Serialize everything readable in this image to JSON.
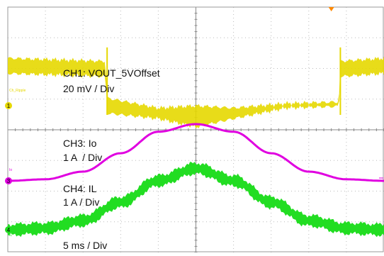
{
  "chart_data": {
    "type": "line",
    "title": "",
    "xlabel": "",
    "ylabel": "",
    "grid": true,
    "timebase": "5 ms / Div",
    "x_divisions": 10,
    "x_range_ms": [
      0,
      50
    ],
    "channels": [
      {
        "name": "CH1: VOUT_5VOffset",
        "scale": "20 mV / Div",
        "color": "#e6d800",
        "marker": "1",
        "tiny_label": "Ch_Ripple",
        "y_range_div": [
          -1.9,
          1.9
        ],
        "x_ms": [
          0,
          13,
          13.2,
          20,
          25,
          30,
          37,
          44,
          44.2,
          50
        ],
        "center_div": [
          1.3,
          1.2,
          0.0,
          -0.25,
          -0.35,
          -0.25,
          0.0,
          0.05,
          1.2,
          1.3
        ],
        "band_div": [
          0.5,
          0.5,
          0.5,
          0.35,
          0.7,
          0.35,
          0.15,
          0.15,
          0.5,
          0.5
        ]
      },
      {
        "name": "CH3: Io",
        "scale": "1 A  / Div",
        "color": "#e000e0",
        "marker": "3",
        "tiny_label": "Io",
        "x_ms": [
          0,
          5,
          10,
          15,
          20,
          25,
          30,
          35,
          40,
          45,
          50
        ],
        "value_div": [
          0,
          0.05,
          0.3,
          0.9,
          1.6,
          1.85,
          1.6,
          0.9,
          0.3,
          0.05,
          0
        ],
        "band_div": 0.05
      },
      {
        "name": "CH4: IL",
        "scale": "1 A / Div",
        "color": "#22dd22",
        "marker": "4",
        "tiny_label": "IL",
        "x_ms": [
          0,
          5,
          10,
          15,
          20,
          25,
          30,
          35,
          40,
          45,
          50
        ],
        "value_div": [
          0,
          0.05,
          0.3,
          0.9,
          1.6,
          2.0,
          1.6,
          0.9,
          0.3,
          0.05,
          0
        ],
        "band_div": 0.35
      }
    ],
    "trigger_marker_color": "#ff8800"
  },
  "labels": {
    "ch1_name": "CH1: VOUT_5VOffset",
    "ch1_scale": "20 mV / Div",
    "ch3_name": "CH3: Io",
    "ch3_scale": "1 A  / Div",
    "ch4_name": "CH4: IL",
    "ch4_scale": "1 A / Div",
    "timebase": "5 ms / Div"
  }
}
